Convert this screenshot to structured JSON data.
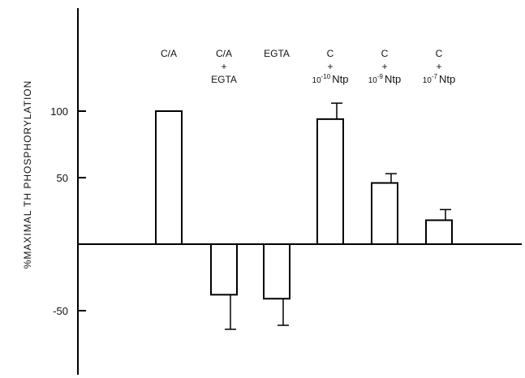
{
  "chart_data": {
    "type": "bar",
    "title": "",
    "xlabel": "",
    "ylabel": "%MAXIMAL TH PHOSPHORYLATION",
    "ylim": [
      -100,
      175
    ],
    "yticks": [
      100,
      50,
      -50
    ],
    "ytick_labels": [
      "100",
      "50",
      "-50"
    ],
    "grid": false,
    "legend": "none",
    "categories": [
      {
        "id": "ca",
        "lines": [
          "C/A"
        ]
      },
      {
        "id": "ca-egta",
        "lines": [
          "C/A",
          "+",
          "EGTA"
        ]
      },
      {
        "id": "egta",
        "lines": [
          "EGTA"
        ]
      },
      {
        "id": "c-ntp10",
        "lines": [
          "C",
          "+"
        ],
        "dose_exp": "-10",
        "dose_prefix": "10",
        "dose_suffix": "Ntp"
      },
      {
        "id": "c-ntp9",
        "lines": [
          "C",
          "+"
        ],
        "dose_exp": "-9",
        "dose_prefix": "10",
        "dose_suffix": "Ntp"
      },
      {
        "id": "c-ntp7",
        "lines": [
          "C",
          "+"
        ],
        "dose_exp": "-7",
        "dose_prefix": "10",
        "dose_suffix": "Ntp"
      }
    ],
    "values": [
      100,
      -38,
      -41,
      94,
      46,
      18
    ],
    "errors": [
      0,
      26,
      20,
      12,
      7,
      8
    ],
    "colors": {
      "bar_fill": "#ffffff",
      "stroke": "#000000"
    }
  }
}
